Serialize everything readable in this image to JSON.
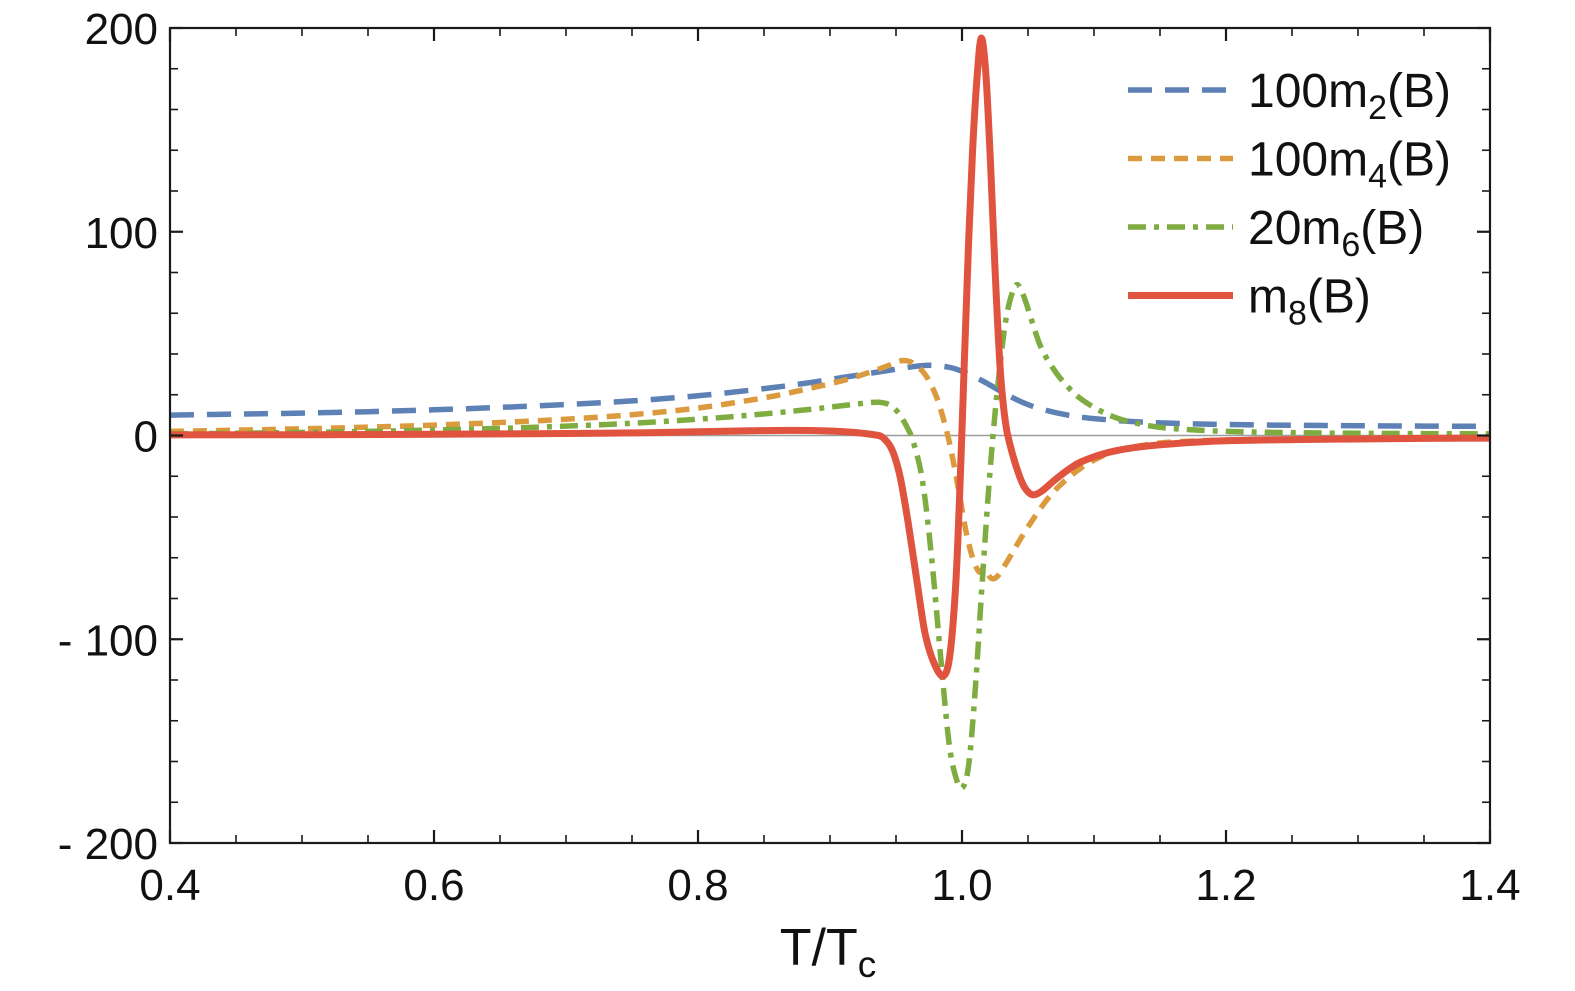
{
  "chart_data": {
    "type": "line",
    "title": "",
    "xlabel": {
      "pre": "T/T",
      "sub": "c"
    },
    "ylabel": "",
    "xlim": [
      0.4,
      1.4
    ],
    "ylim": [
      -200,
      200
    ],
    "grid": "off",
    "zero_line": true,
    "zero_line_color": "#9c9c9c",
    "frame_color": "#1a1a1a",
    "background": "#ffffff",
    "legend_position": "top-right",
    "x_ticks": {
      "major": [
        0.4,
        0.6,
        0.8,
        1.0,
        1.2,
        1.4
      ],
      "labels": [
        "0.4",
        "0.6",
        "0.8",
        "1.0",
        "1.2",
        "1.4"
      ],
      "minor_step": 0.05
    },
    "y_ticks": {
      "major": [
        -200,
        -100,
        0,
        100,
        200
      ],
      "labels": [
        "- 200",
        "- 100",
        "0",
        "100",
        "200"
      ],
      "minor_step": 20
    },
    "series": [
      {
        "id": "100m2",
        "label": {
          "pre": "100m",
          "sub": "2",
          "post": "(B)"
        },
        "color": "#5E81B5",
        "style": "long-dash",
        "dash": [
          24,
          13
        ],
        "width": 5.5,
        "points": [
          [
            0.4,
            10
          ],
          [
            0.45,
            10.5
          ],
          [
            0.5,
            11
          ],
          [
            0.55,
            11.7
          ],
          [
            0.6,
            12.6
          ],
          [
            0.65,
            13.8
          ],
          [
            0.7,
            15.2
          ],
          [
            0.75,
            17
          ],
          [
            0.8,
            19.5
          ],
          [
            0.85,
            23
          ],
          [
            0.88,
            25.5
          ],
          [
            0.91,
            28.5
          ],
          [
            0.94,
            31.5
          ],
          [
            0.96,
            33.5
          ],
          [
            0.975,
            34.5
          ],
          [
            0.99,
            33.5
          ],
          [
            1.0,
            31.5
          ],
          [
            1.015,
            27
          ],
          [
            1.03,
            21.5
          ],
          [
            1.045,
            16.5
          ],
          [
            1.06,
            13
          ],
          [
            1.08,
            10
          ],
          [
            1.1,
            8.3
          ],
          [
            1.13,
            6.8
          ],
          [
            1.16,
            6
          ],
          [
            1.2,
            5.4
          ],
          [
            1.25,
            5
          ],
          [
            1.3,
            4.8
          ],
          [
            1.35,
            4.6
          ],
          [
            1.4,
            4.5
          ]
        ]
      },
      {
        "id": "100m4",
        "label": {
          "pre": "100m",
          "sub": "4",
          "post": "(B)"
        },
        "color": "#DC9A3E",
        "style": "dash",
        "dash": [
          14,
          9
        ],
        "width": 5.5,
        "points": [
          [
            0.4,
            2
          ],
          [
            0.45,
            2.6
          ],
          [
            0.5,
            3.3
          ],
          [
            0.55,
            4.1
          ],
          [
            0.6,
            5.1
          ],
          [
            0.65,
            6.4
          ],
          [
            0.7,
            8
          ],
          [
            0.75,
            10.2
          ],
          [
            0.8,
            13.5
          ],
          [
            0.85,
            18.5
          ],
          [
            0.88,
            22.5
          ],
          [
            0.91,
            27
          ],
          [
            0.93,
            31
          ],
          [
            0.945,
            34.5
          ],
          [
            0.955,
            36.8
          ],
          [
            0.963,
            35.5
          ],
          [
            0.972,
            30
          ],
          [
            0.98,
            20
          ],
          [
            0.986,
            8
          ],
          [
            0.991,
            -5
          ],
          [
            0.997,
            -25
          ],
          [
            1.003,
            -47
          ],
          [
            1.008,
            -60
          ],
          [
            1.013,
            -67
          ],
          [
            1.017,
            -65
          ],
          [
            1.022,
            -70
          ],
          [
            1.027,
            -69
          ],
          [
            1.035,
            -61
          ],
          [
            1.045,
            -50
          ],
          [
            1.055,
            -40
          ],
          [
            1.065,
            -31
          ],
          [
            1.075,
            -24
          ],
          [
            1.09,
            -16
          ],
          [
            1.105,
            -10.5
          ],
          [
            1.12,
            -7
          ],
          [
            1.14,
            -4.5
          ],
          [
            1.16,
            -3.2
          ],
          [
            1.2,
            -2.2
          ],
          [
            1.25,
            -1.7
          ],
          [
            1.3,
            -1.4
          ],
          [
            1.35,
            -1.2
          ],
          [
            1.4,
            -1.1
          ]
        ]
      },
      {
        "id": "20m6",
        "label": {
          "pre": "20m",
          "sub": "6",
          "post": "(B)"
        },
        "color": "#7FAC41",
        "style": "dash-dot",
        "dash": [
          18,
          8,
          5,
          8
        ],
        "width": 5.5,
        "points": [
          [
            0.4,
            0.8
          ],
          [
            0.45,
            1.1
          ],
          [
            0.5,
            1.5
          ],
          [
            0.55,
            2
          ],
          [
            0.6,
            2.7
          ],
          [
            0.65,
            3.5
          ],
          [
            0.7,
            4.6
          ],
          [
            0.75,
            6
          ],
          [
            0.8,
            8
          ],
          [
            0.84,
            10
          ],
          [
            0.88,
            12.5
          ],
          [
            0.905,
            14.3
          ],
          [
            0.925,
            15.8
          ],
          [
            0.937,
            16.3
          ],
          [
            0.945,
            15
          ],
          [
            0.952,
            11
          ],
          [
            0.958,
            4.5
          ],
          [
            0.963,
            -3
          ],
          [
            0.97,
            -22
          ],
          [
            0.977,
            -60
          ],
          [
            0.984,
            -110
          ],
          [
            0.99,
            -150
          ],
          [
            0.995,
            -167
          ],
          [
            1.0,
            -173
          ],
          [
            1.005,
            -162
          ],
          [
            1.01,
            -125
          ],
          [
            1.015,
            -75
          ],
          [
            1.02,
            -28
          ],
          [
            1.0235,
            0
          ],
          [
            1.028,
            30
          ],
          [
            1.033,
            56
          ],
          [
            1.038,
            70
          ],
          [
            1.042,
            74
          ],
          [
            1.047,
            68
          ],
          [
            1.053,
            56
          ],
          [
            1.06,
            43
          ],
          [
            1.07,
            32
          ],
          [
            1.08,
            24
          ],
          [
            1.09,
            18
          ],
          [
            1.105,
            12
          ],
          [
            1.12,
            8
          ],
          [
            1.14,
            5
          ],
          [
            1.16,
            3.4
          ],
          [
            1.2,
            2
          ],
          [
            1.25,
            1.4
          ],
          [
            1.3,
            1.1
          ],
          [
            1.35,
            0.9
          ],
          [
            1.4,
            0.8
          ]
        ]
      },
      {
        "id": "m8",
        "label": {
          "pre": "m",
          "sub": "8",
          "post": "(B)"
        },
        "color": "#E0533F",
        "style": "solid",
        "dash": [],
        "width": 7,
        "points": [
          [
            0.4,
            0.3
          ],
          [
            0.5,
            0.4
          ],
          [
            0.6,
            0.6
          ],
          [
            0.7,
            1
          ],
          [
            0.75,
            1.3
          ],
          [
            0.8,
            1.8
          ],
          [
            0.84,
            2.3
          ],
          [
            0.87,
            2.5
          ],
          [
            0.9,
            2.2
          ],
          [
            0.92,
            1.4
          ],
          [
            0.933,
            0.4
          ],
          [
            0.94,
            -1
          ],
          [
            0.947,
            -7
          ],
          [
            0.953,
            -20
          ],
          [
            0.959,
            -42
          ],
          [
            0.966,
            -72
          ],
          [
            0.972,
            -97
          ],
          [
            0.979,
            -112
          ],
          [
            0.986,
            -118
          ],
          [
            0.991,
            -107
          ],
          [
            0.9955,
            -70
          ],
          [
            0.999,
            -15
          ],
          [
            1.002,
            40
          ],
          [
            1.005,
            95
          ],
          [
            1.008,
            140
          ],
          [
            1.011,
            172
          ],
          [
            1.0145,
            195
          ],
          [
            1.018,
            178
          ],
          [
            1.0215,
            135
          ],
          [
            1.025,
            82
          ],
          [
            1.029,
            32
          ],
          [
            1.033,
            6
          ],
          [
            1.037,
            -6
          ],
          [
            1.042,
            -17
          ],
          [
            1.047,
            -25
          ],
          [
            1.053,
            -29
          ],
          [
            1.06,
            -27.5
          ],
          [
            1.07,
            -22
          ],
          [
            1.08,
            -17
          ],
          [
            1.09,
            -13
          ],
          [
            1.11,
            -8.5
          ],
          [
            1.13,
            -6
          ],
          [
            1.16,
            -4
          ],
          [
            1.2,
            -2.6
          ],
          [
            1.25,
            -2
          ],
          [
            1.3,
            -1.7
          ],
          [
            1.35,
            -1.4
          ],
          [
            1.4,
            -1.3
          ]
        ]
      }
    ]
  }
}
